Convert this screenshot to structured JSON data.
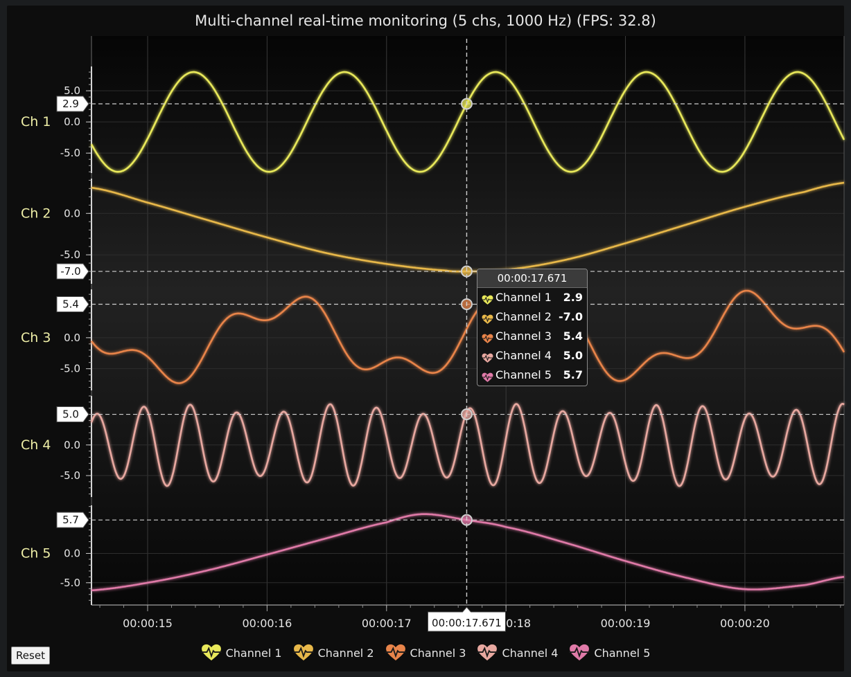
{
  "title": "Multi-channel real-time monitoring (5 chs, 1000 Hz) (FPS: 32.8)",
  "reset_label": "Reset",
  "cursor": {
    "time_label": "00:00:17.671"
  },
  "tooltip": {
    "time": "00:00:17.671",
    "rows": [
      {
        "name": "Channel 1",
        "value": "2.9"
      },
      {
        "name": "Channel 2",
        "value": "-7.0"
      },
      {
        "name": "Channel 3",
        "value": "5.4"
      },
      {
        "name": "Channel 4",
        "value": "5.0"
      },
      {
        "name": "Channel 5",
        "value": "5.7"
      }
    ]
  },
  "legend": [
    {
      "name": "Channel 1",
      "color": "#e8e85a"
    },
    {
      "name": "Channel 2",
      "color": "#e8b84a"
    },
    {
      "name": "Channel 3",
      "color": "#e8844a"
    },
    {
      "name": "Channel 4",
      "color": "#e8a8a0"
    },
    {
      "name": "Channel 5",
      "color": "#e07aa8"
    }
  ],
  "chart_data": {
    "type": "line",
    "x_unit": "seconds",
    "xlim": [
      14.53,
      20.83
    ],
    "x_ticks": [
      {
        "value": 15,
        "label": "00:00:15"
      },
      {
        "value": 16,
        "label": "00:00:16"
      },
      {
        "value": 17,
        "label": "00:00:17"
      },
      {
        "value": 18,
        "label": "00:00:18"
      },
      {
        "value": 19,
        "label": "00:00:19"
      },
      {
        "value": 20,
        "label": "00:00:20"
      }
    ],
    "cursor_x": 17.671,
    "grid": true,
    "legend_position": "bottom-center",
    "channels": [
      {
        "name": "Channel 1",
        "axis_label": "Ch 1",
        "color": "#e8e85a",
        "y_ticks": [
          {
            "value": 5,
            "label": "5.0"
          },
          {
            "value": 0,
            "label": "0.0"
          },
          {
            "value": -5,
            "label": "-5.0"
          }
        ],
        "ylim": [
          -8.2,
          8.9
        ],
        "cursor_value": 2.9,
        "cursor_label": "2.9",
        "signal": {
          "kind": "sine",
          "amplitude": 8,
          "period_s": 1.264,
          "phase_at_cursor": 0.37
        }
      },
      {
        "name": "Channel 2",
        "axis_label": "Ch 2",
        "color": "#e8b84a",
        "y_ticks": [
          {
            "value": 0,
            "label": "0.0"
          },
          {
            "value": -5,
            "label": "-5.0"
          }
        ],
        "ylim": [
          -8.5,
          4.2
        ],
        "cursor_value": -7.0,
        "cursor_label": "-7.0",
        "points": [
          [
            14.53,
            3.1
          ],
          [
            15.0,
            1.3
          ],
          [
            15.5,
            -0.8
          ],
          [
            16.0,
            -2.9
          ],
          [
            16.5,
            -4.8
          ],
          [
            17.0,
            -6.1
          ],
          [
            17.5,
            -6.9
          ],
          [
            17.671,
            -7.0
          ],
          [
            18.0,
            -6.8
          ],
          [
            18.5,
            -5.6
          ],
          [
            19.0,
            -3.6
          ],
          [
            19.5,
            -1.4
          ],
          [
            20.0,
            0.8
          ],
          [
            20.5,
            2.6
          ],
          [
            20.83,
            3.7
          ]
        ]
      },
      {
        "name": "Channel 3",
        "axis_label": "Ch 3",
        "color": "#e8844a",
        "y_ticks": [
          {
            "value": 0,
            "label": "0.0"
          },
          {
            "value": -5,
            "label": "-5.0"
          }
        ],
        "ylim": [
          -8.5,
          7.8
        ],
        "cursor_value": 5.4,
        "cursor_label": "5.4",
        "signal": {
          "kind": "two_sine",
          "a1": 5.6,
          "period1_s": 2.0,
          "phase1_at_cursor": 0.15,
          "a2": 2.4,
          "period2_s": 0.72,
          "phase2_at_cursor": 0.25,
          "reference_x": 17.671
        }
      },
      {
        "name": "Channel 4",
        "axis_label": "Ch 4",
        "color": "#e8a8a0",
        "y_ticks": [
          {
            "value": 0,
            "label": "0.0"
          },
          {
            "value": -5,
            "label": "-5.0"
          }
        ],
        "ylim": [
          -8.5,
          8.0
        ],
        "cursor_value": 5.0,
        "cursor_label": "5.0",
        "signal": {
          "kind": "am_sine",
          "amplitude": 5.9,
          "mod_depth": 0.14,
          "period_s": 0.39,
          "mod_period_s": 1.4,
          "phase_at_cursor": 0.1
        }
      },
      {
        "name": "Channel 5",
        "axis_label": "Ch 5",
        "color": "#e07aa8",
        "y_ticks": [
          {
            "value": 0,
            "label": "0.0"
          },
          {
            "value": -5,
            "label": "-5.0"
          }
        ],
        "ylim": [
          -8.8,
          8.2
        ],
        "cursor_value": 5.7,
        "cursor_label": "5.7",
        "points": [
          [
            14.53,
            -6.3
          ],
          [
            15.0,
            -5.0
          ],
          [
            15.5,
            -2.9
          ],
          [
            16.0,
            -0.2
          ],
          [
            16.5,
            2.6
          ],
          [
            17.0,
            5.3
          ],
          [
            17.3,
            6.7
          ],
          [
            17.671,
            5.7
          ],
          [
            18.0,
            4.5
          ],
          [
            18.5,
            1.8
          ],
          [
            19.0,
            -1.3
          ],
          [
            19.5,
            -4.1
          ],
          [
            20.0,
            -6.1
          ],
          [
            20.5,
            -5.4
          ],
          [
            20.83,
            -4.0
          ]
        ]
      }
    ]
  }
}
